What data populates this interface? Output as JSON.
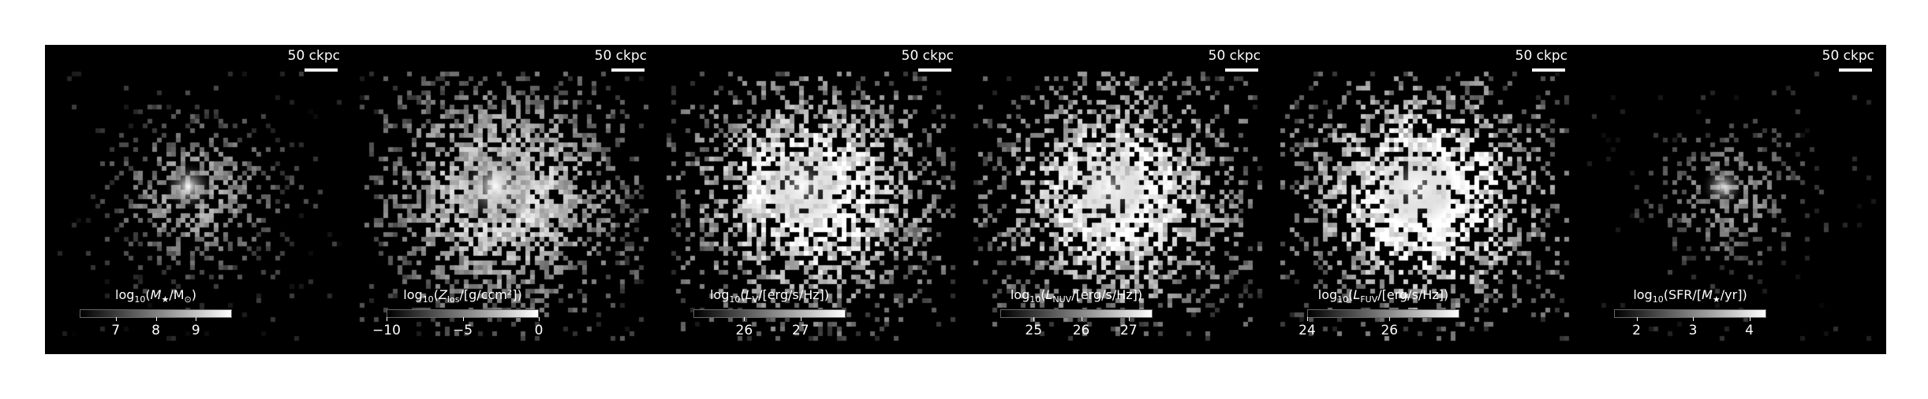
{
  "scale_bar_label": "50 ckpc",
  "panels": [
    {
      "title": {
        "pre": "log",
        "sub1": "10",
        "mid": "(",
        "var": "M",
        "sub2": "★",
        "post": "/M",
        "sub3": "⊙",
        "end": ")"
      },
      "colorbar": {
        "min": 6.1,
        "max": 9.9
      },
      "ticks": [
        "7",
        "8",
        "9"
      ],
      "tick_values": [
        7,
        8,
        9
      ],
      "blob": {
        "spread": 0.55,
        "brightness": 0.55,
        "core": 1.0,
        "density": 0.55
      }
    },
    {
      "title": {
        "pre": "log",
        "sub1": "10",
        "mid": "(",
        "var": "Z",
        "sub2": "los",
        "post": "/[g/ccm²]",
        "sub3": "",
        "end": ")"
      },
      "colorbar": {
        "min": -10,
        "max": 0
      },
      "ticks": [
        "−10",
        "−5",
        "0"
      ],
      "tick_values": [
        -10,
        -5,
        0
      ],
      "blob": {
        "spread": 1.0,
        "brightness": 0.7,
        "core": 1.0,
        "density": 0.85
      }
    },
    {
      "title": {
        "pre": "log",
        "sub1": "10",
        "mid": "(",
        "var": "L",
        "sub2": "V",
        "post": "/[erg/s/Hz]",
        "sub3": "",
        "end": ")"
      },
      "colorbar": {
        "min": 25.1,
        "max": 27.8
      },
      "ticks": [
        "26",
        "27"
      ],
      "tick_values": [
        26,
        27
      ],
      "blob": {
        "spread": 1.0,
        "brightness": 0.85,
        "core": 0.6,
        "density": 0.85
      }
    },
    {
      "title": {
        "pre": "log",
        "sub1": "10",
        "mid": "(",
        "var": "L",
        "sub2": "NUV",
        "post": "/[erg/s/Hz]",
        "sub3": "",
        "end": ")"
      },
      "colorbar": {
        "min": 24.3,
        "max": 27.5
      },
      "ticks": [
        "25",
        "26",
        "27"
      ],
      "tick_values": [
        25,
        26,
        27
      ],
      "blob": {
        "spread": 1.0,
        "brightness": 0.85,
        "core": 0.6,
        "density": 0.85
      }
    },
    {
      "title": {
        "pre": "log",
        "sub1": "10",
        "mid": "(",
        "var": "L",
        "sub2": "FUV",
        "post": "/[erg/s/Hz]",
        "sub3": "",
        "end": ")"
      },
      "colorbar": {
        "min": 24.0,
        "max": 27.7
      },
      "ticks": [
        "24",
        "26"
      ],
      "tick_values": [
        24,
        26
      ],
      "blob": {
        "spread": 1.0,
        "brightness": 0.9,
        "core": 0.6,
        "density": 0.85
      }
    },
    {
      "title": {
        "pre": "log",
        "sub1": "10",
        "mid": "(SFR/[",
        "var": "M",
        "sub2": "★",
        "post": "/yr]",
        "sub3": "",
        "end": ")"
      },
      "colorbar": {
        "min": 1.6,
        "max": 4.3
      },
      "ticks": [
        "2",
        "3",
        "4"
      ],
      "tick_values": [
        2,
        3,
        4
      ],
      "blob": {
        "spread": 0.45,
        "brightness": 0.5,
        "core": 0.9,
        "density": 0.45
      }
    }
  ]
}
